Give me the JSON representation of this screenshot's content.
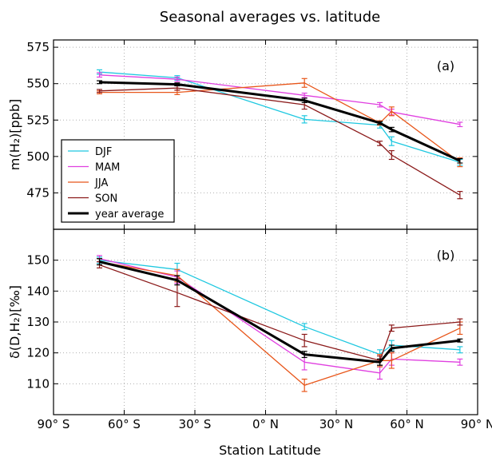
{
  "chart_data": {
    "title": "Seasonal averages vs. latitude",
    "xlabel": "Station Latitude",
    "xlim": [
      -90,
      90
    ],
    "x_ticks": [
      {
        "value": -90,
        "label": "90° S"
      },
      {
        "value": -60,
        "label": "60° S"
      },
      {
        "value": -30,
        "label": "30° S"
      },
      {
        "value": 0,
        "label": "0° N"
      },
      {
        "value": 30,
        "label": "30° N"
      },
      {
        "value": 60,
        "label": "60° N"
      },
      {
        "value": 90,
        "label": "90° N"
      }
    ],
    "x": [
      -70.5,
      -37.5,
      16.5,
      48.5,
      53.5,
      82.5
    ],
    "grid": true,
    "legend_placement": "lower-left of panel (a)",
    "panels": [
      {
        "tag": "(a)",
        "type": "line",
        "ylabel": "m(H₂)[ppb]",
        "ylim": [
          450,
          580
        ],
        "yticks": [
          475,
          500,
          525,
          550,
          575
        ],
        "series": [
          {
            "name": "DJF",
            "color": "#1fc8e0",
            "values": [
              558,
              554,
              525.5,
              521.5,
              510.5,
              496
            ],
            "errors": [
              1.5,
              1.5,
              2.5,
              2,
              3,
              2
            ]
          },
          {
            "name": "MAM",
            "color": "#e040e0",
            "values": [
              556,
              553,
              542,
              535.5,
              530.5,
              522
            ],
            "errors": [
              1.5,
              1.5,
              1.5,
              1.5,
              2,
              1.5
            ]
          },
          {
            "name": "JJA",
            "color": "#e8561a",
            "values": [
              544,
              544,
              550.5,
              523,
              531,
              496
            ],
            "errors": [
              1,
              1.5,
              3,
              1.5,
              3,
              3
            ]
          },
          {
            "name": "SON",
            "color": "#8b1a1a",
            "values": [
              545,
              547,
              535.5,
              509,
              501,
              473.5
            ],
            "errors": [
              1,
              1.5,
              3,
              1.5,
              3,
              2.5
            ]
          },
          {
            "name": "year average",
            "color": "#000000",
            "values": [
              551,
              549.5,
              538.5,
              523,
              518.5,
              497
            ],
            "errors": [
              1,
              1,
              1.5,
              1,
              1.5,
              1.5
            ]
          }
        ]
      },
      {
        "tag": "(b)",
        "type": "line",
        "ylabel": "δ(D,H₂)[‰]",
        "ylim": [
          100,
          160
        ],
        "yticks": [
          110,
          120,
          130,
          140,
          150
        ],
        "series": [
          {
            "name": "DJF",
            "color": "#1fc8e0",
            "values": [
              150,
              147,
              128.5,
              119.5,
              122.5,
              121
            ],
            "errors": [
              1,
              2,
              1,
              1.5,
              1.5,
              1
            ]
          },
          {
            "name": "MAM",
            "color": "#e040e0",
            "values": [
              150.5,
              144.5,
              117,
              113.5,
              118,
              117
            ],
            "errors": [
              1,
              2,
              2.5,
              2,
              2,
              1
            ]
          },
          {
            "name": "JJA",
            "color": "#e8561a",
            "values": [
              149.5,
              145,
              109.5,
              117.5,
              117.5,
              128
            ],
            "errors": [
              1,
              2,
              2,
              2,
              2.5,
              2
            ]
          },
          {
            "name": "SON",
            "color": "#8b1a1a",
            "values": [
              148.5,
              139.5,
              124,
              117.5,
              128,
              130
            ],
            "errors": [
              1,
              4.5,
              2,
              1.5,
              1,
              1
            ]
          },
          {
            "name": "year average",
            "color": "#000000",
            "values": [
              149.5,
              143.5,
              119.5,
              117,
              121.5,
              124
            ],
            "errors": [
              1,
              1.5,
              1,
              1,
              1,
              0.5
            ]
          }
        ]
      }
    ]
  }
}
